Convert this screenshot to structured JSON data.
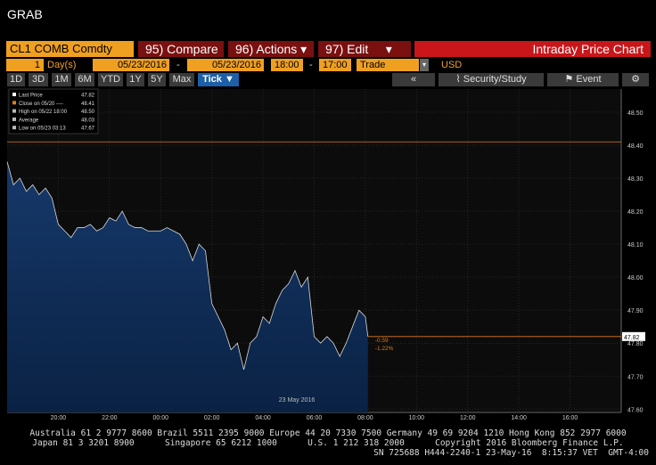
{
  "header": {
    "title": "GRAB"
  },
  "toolbar": {
    "security": "CL1 COMB Comdty",
    "buttons": [
      "95) Compare",
      "96) Actions",
      "97) Edit"
    ],
    "panel_title": "Intraday Price Chart"
  },
  "inputs": {
    "count": "1",
    "unit": "Day(s)",
    "start_date": "05/23/2016",
    "separator": "-",
    "end_date": "05/23/2016",
    "start_time": "18:00",
    "end_time": "17:00",
    "field": "Trade",
    "currency": "USD"
  },
  "range_buttons": [
    "1D",
    "3D",
    "1M",
    "6M",
    "YTD",
    "1Y",
    "5Y",
    "Max",
    "Tick"
  ],
  "tools": [
    "Security/Study",
    "Event"
  ],
  "chart_data": {
    "type": "line",
    "legend": {
      "labels": [
        "Last Price",
        "Close on 05/20 ----",
        "High on 05/22 18:00",
        "Average",
        "Low on 05/23 03:13"
      ],
      "values": [
        47.82,
        48.41,
        48.5,
        48.03,
        47.67
      ],
      "value_labels": [
        "47.82",
        "48.41",
        "48.50",
        "48.03",
        "47.67"
      ]
    },
    "x": [
      0,
      0.25,
      0.5,
      0.75,
      1,
      1.25,
      1.5,
      1.75,
      2,
      2.25,
      2.5,
      2.75,
      3,
      3.25,
      3.5,
      3.75,
      4,
      4.25,
      4.5,
      4.75,
      5,
      5.25,
      5.5,
      5.75,
      6,
      6.25,
      6.5,
      6.75,
      7,
      7.25,
      7.5,
      7.75,
      8,
      8.25,
      8.5,
      8.75,
      9,
      9.25,
      9.5,
      9.75,
      10,
      10.25,
      10.5,
      10.75,
      11,
      11.25,
      11.5,
      11.75,
      12,
      12.25,
      12.5,
      12.75,
      13,
      13.25,
      13.5,
      13.75,
      14,
      14.1
    ],
    "series": [
      {
        "color": "#d9d9d9",
        "values": [
          48.35,
          48.28,
          48.3,
          48.26,
          48.28,
          48.25,
          48.27,
          48.24,
          48.16,
          48.14,
          48.12,
          48.15,
          48.15,
          48.16,
          48.14,
          48.15,
          48.18,
          48.17,
          48.2,
          48.16,
          48.15,
          48.15,
          48.14,
          48.14,
          48.14,
          48.15,
          48.14,
          48.13,
          48.1,
          48.05,
          48.1,
          48.08,
          47.92,
          47.88,
          47.84,
          47.78,
          47.8,
          47.72,
          47.8,
          47.82,
          47.88,
          47.86,
          47.92,
          47.96,
          47.98,
          48.02,
          47.97,
          48.0,
          47.82,
          47.8,
          47.82,
          47.8,
          47.76,
          47.8,
          47.85,
          47.9,
          47.88,
          47.82
        ]
      }
    ],
    "annotations": [
      "-0.59",
      "-1.22%"
    ],
    "date_label": "23 May 2016",
    "xlim": [
      0,
      24
    ],
    "xticks": [
      {
        "value": 2,
        "label": "20:00"
      },
      {
        "value": 4,
        "label": "22:00"
      },
      {
        "value": 6,
        "label": "00:00"
      },
      {
        "value": 8,
        "label": "02:00"
      },
      {
        "value": 10,
        "label": "04:00"
      },
      {
        "value": 12,
        "label": "06:00"
      },
      {
        "value": 14,
        "label": "08:00"
      },
      {
        "value": 16,
        "label": "10:00"
      },
      {
        "value": 18,
        "label": "12:00"
      },
      {
        "value": 20,
        "label": "14:00"
      },
      {
        "value": 22,
        "label": "16:00"
      }
    ],
    "ylim": [
      47.59,
      48.57
    ],
    "yticks": [
      {
        "value": 48.5,
        "label": "48.50"
      },
      {
        "value": 48.4,
        "label": "48.40"
      },
      {
        "value": 48.3,
        "label": "48.30"
      },
      {
        "value": 48.2,
        "label": "48.20"
      },
      {
        "value": 48.1,
        "label": "48.10"
      },
      {
        "value": 48.0,
        "label": "48.00"
      },
      {
        "value": 47.9,
        "label": "47.90"
      },
      {
        "value": 47.8,
        "label": "47.80"
      },
      {
        "value": 47.7,
        "label": "47.70"
      },
      {
        "value": 47.6,
        "label": "47.60"
      }
    ],
    "grid": true,
    "area_color": "#0e2a52",
    "reference_color": "#e07b1a"
  },
  "footer": {
    "lines": [
      "Australia 61 2 9777 8600 Brazil 5511 2395 9000 Europe 44 20 7330 7500 Germany 49 69 9204 1210 Hong Kong 852 2977 6000",
      "Japan 81 3 3201 8900      Singapore 65 6212 1000      U.S. 1 212 318 2000      Copyright 2016 Bloomberg Finance L.P.",
      "SN 725688 H444-2240-1 23-May-16  8:15:37 VET  GMT-4:00"
    ]
  }
}
